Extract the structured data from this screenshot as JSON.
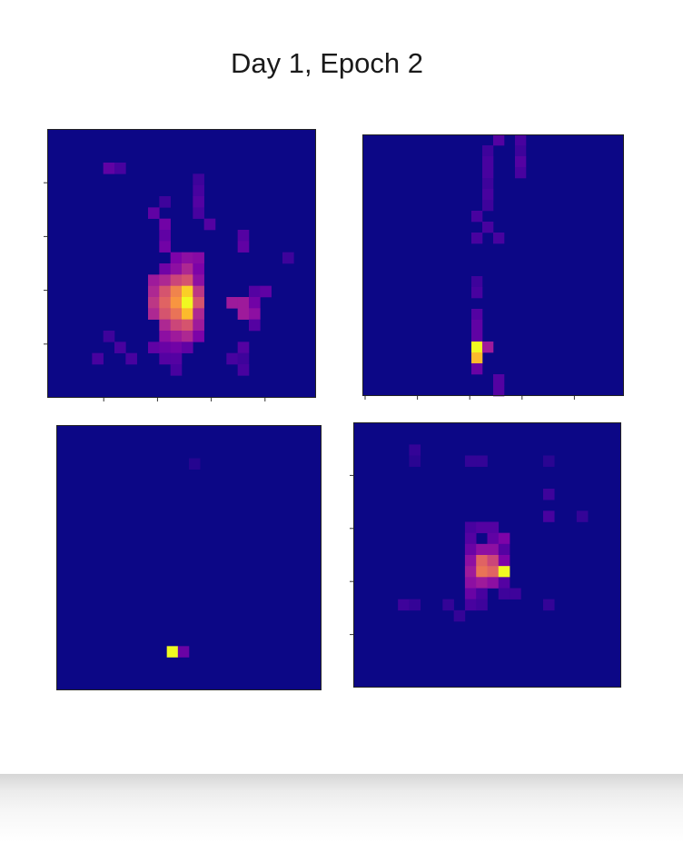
{
  "title": "Day 1, Epoch 2",
  "colors": {
    "background_cell": "#0c0786",
    "colormap": [
      "#0c0786",
      "#4a02a0",
      "#7d03a8",
      "#a62098",
      "#cb4679",
      "#e56a5d",
      "#f89540",
      "#fdc527",
      "#f0f921"
    ]
  },
  "chart_data": [
    {
      "type": "heatmap",
      "colormap": "plasma",
      "grid": {
        "rows": 24,
        "cols": 24
      },
      "vmax": 1.0,
      "cells": [
        [
          3,
          5,
          0.18
        ],
        [
          3,
          6,
          0.12
        ],
        [
          4,
          13,
          0.1
        ],
        [
          5,
          13,
          0.12
        ],
        [
          6,
          10,
          0.1
        ],
        [
          6,
          13,
          0.15
        ],
        [
          7,
          9,
          0.18
        ],
        [
          7,
          13,
          0.12
        ],
        [
          8,
          10,
          0.22
        ],
        [
          8,
          14,
          0.15
        ],
        [
          9,
          10,
          0.18
        ],
        [
          9,
          17,
          0.15
        ],
        [
          10,
          10,
          0.22
        ],
        [
          10,
          17,
          0.18
        ],
        [
          11,
          11,
          0.25
        ],
        [
          11,
          12,
          0.3
        ],
        [
          11,
          13,
          0.28
        ],
        [
          11,
          21,
          0.1
        ],
        [
          12,
          10,
          0.22
        ],
        [
          12,
          11,
          0.3
        ],
        [
          12,
          12,
          0.4
        ],
        [
          12,
          13,
          0.25
        ],
        [
          13,
          9,
          0.35
        ],
        [
          13,
          10,
          0.4
        ],
        [
          13,
          11,
          0.5
        ],
        [
          13,
          12,
          0.55
        ],
        [
          13,
          13,
          0.3
        ],
        [
          14,
          9,
          0.4
        ],
        [
          14,
          10,
          0.55
        ],
        [
          14,
          11,
          0.7
        ],
        [
          14,
          12,
          0.9
        ],
        [
          14,
          13,
          0.45
        ],
        [
          14,
          18,
          0.15
        ],
        [
          14,
          19,
          0.18
        ],
        [
          15,
          9,
          0.45
        ],
        [
          15,
          10,
          0.6
        ],
        [
          15,
          11,
          0.75
        ],
        [
          15,
          12,
          1.0
        ],
        [
          15,
          13,
          0.55
        ],
        [
          15,
          16,
          0.35
        ],
        [
          15,
          17,
          0.35
        ],
        [
          15,
          18,
          0.22
        ],
        [
          16,
          9,
          0.4
        ],
        [
          16,
          10,
          0.55
        ],
        [
          16,
          11,
          0.65
        ],
        [
          16,
          12,
          0.85
        ],
        [
          16,
          13,
          0.4
        ],
        [
          16,
          17,
          0.35
        ],
        [
          16,
          18,
          0.3
        ],
        [
          17,
          10,
          0.4
        ],
        [
          17,
          11,
          0.5
        ],
        [
          17,
          12,
          0.55
        ],
        [
          17,
          13,
          0.35
        ],
        [
          17,
          18,
          0.15
        ],
        [
          18,
          10,
          0.3
        ],
        [
          18,
          11,
          0.35
        ],
        [
          18,
          12,
          0.4
        ],
        [
          18,
          13,
          0.25
        ],
        [
          18,
          5,
          0.1
        ],
        [
          19,
          6,
          0.12
        ],
        [
          19,
          9,
          0.18
        ],
        [
          19,
          10,
          0.2
        ],
        [
          19,
          11,
          0.22
        ],
        [
          19,
          12,
          0.18
        ],
        [
          19,
          17,
          0.15
        ],
        [
          20,
          4,
          0.12
        ],
        [
          20,
          7,
          0.12
        ],
        [
          20,
          10,
          0.15
        ],
        [
          20,
          11,
          0.15
        ],
        [
          20,
          16,
          0.12
        ],
        [
          20,
          17,
          0.1
        ],
        [
          21,
          11,
          0.12
        ],
        [
          21,
          17,
          0.12
        ]
      ]
    },
    {
      "type": "heatmap",
      "colormap": "plasma",
      "grid": {
        "rows": 24,
        "cols": 24
      },
      "vmax": 1.0,
      "cells": [
        [
          0,
          12,
          0.15
        ],
        [
          0,
          14,
          0.12
        ],
        [
          1,
          11,
          0.1
        ],
        [
          1,
          14,
          0.1
        ],
        [
          2,
          11,
          0.12
        ],
        [
          2,
          14,
          0.15
        ],
        [
          3,
          11,
          0.12
        ],
        [
          3,
          14,
          0.12
        ],
        [
          4,
          11,
          0.1
        ],
        [
          5,
          11,
          0.12
        ],
        [
          6,
          11,
          0.1
        ],
        [
          7,
          10,
          0.12
        ],
        [
          8,
          11,
          0.12
        ],
        [
          9,
          10,
          0.12
        ],
        [
          9,
          12,
          0.12
        ],
        [
          13,
          10,
          0.1
        ],
        [
          14,
          10,
          0.12
        ],
        [
          16,
          10,
          0.15
        ],
        [
          17,
          10,
          0.18
        ],
        [
          18,
          10,
          0.18
        ],
        [
          19,
          10,
          1.0
        ],
        [
          19,
          11,
          0.35
        ],
        [
          20,
          10,
          0.85
        ],
        [
          21,
          10,
          0.2
        ],
        [
          22,
          12,
          0.15
        ],
        [
          23,
          12,
          0.15
        ]
      ]
    },
    {
      "type": "heatmap",
      "colormap": "plasma",
      "grid": {
        "rows": 24,
        "cols": 24
      },
      "vmax": 1.0,
      "cells": [
        [
          3,
          12,
          0.05
        ],
        [
          20,
          10,
          1.0
        ],
        [
          20,
          11,
          0.2
        ]
      ]
    },
    {
      "type": "heatmap",
      "colormap": "plasma",
      "grid": {
        "rows": 24,
        "cols": 24
      },
      "vmax": 1.0,
      "cells": [
        [
          2,
          5,
          0.08
        ],
        [
          3,
          5,
          0.06
        ],
        [
          3,
          10,
          0.08
        ],
        [
          3,
          11,
          0.08
        ],
        [
          3,
          17,
          0.06
        ],
        [
          6,
          17,
          0.1
        ],
        [
          8,
          17,
          0.12
        ],
        [
          8,
          20,
          0.08
        ],
        [
          9,
          10,
          0.12
        ],
        [
          9,
          11,
          0.15
        ],
        [
          9,
          12,
          0.15
        ],
        [
          10,
          10,
          0.15
        ],
        [
          10,
          12,
          0.18
        ],
        [
          10,
          13,
          0.25
        ],
        [
          11,
          10,
          0.2
        ],
        [
          11,
          11,
          0.3
        ],
        [
          11,
          12,
          0.3
        ],
        [
          11,
          13,
          0.15
        ],
        [
          12,
          10,
          0.3
        ],
        [
          12,
          11,
          0.6
        ],
        [
          12,
          12,
          0.5
        ],
        [
          12,
          13,
          0.25
        ],
        [
          13,
          10,
          0.35
        ],
        [
          13,
          11,
          0.65
        ],
        [
          13,
          12,
          0.6
        ],
        [
          13,
          13,
          1.0
        ],
        [
          14,
          10,
          0.3
        ],
        [
          14,
          11,
          0.35
        ],
        [
          14,
          12,
          0.3
        ],
        [
          14,
          13,
          0.15
        ],
        [
          15,
          10,
          0.2
        ],
        [
          15,
          11,
          0.12
        ],
        [
          15,
          13,
          0.1
        ],
        [
          15,
          14,
          0.1
        ],
        [
          16,
          4,
          0.1
        ],
        [
          16,
          5,
          0.08
        ],
        [
          16,
          8,
          0.08
        ],
        [
          16,
          10,
          0.12
        ],
        [
          16,
          11,
          0.1
        ],
        [
          16,
          17,
          0.08
        ],
        [
          17,
          9,
          0.08
        ]
      ]
    }
  ]
}
